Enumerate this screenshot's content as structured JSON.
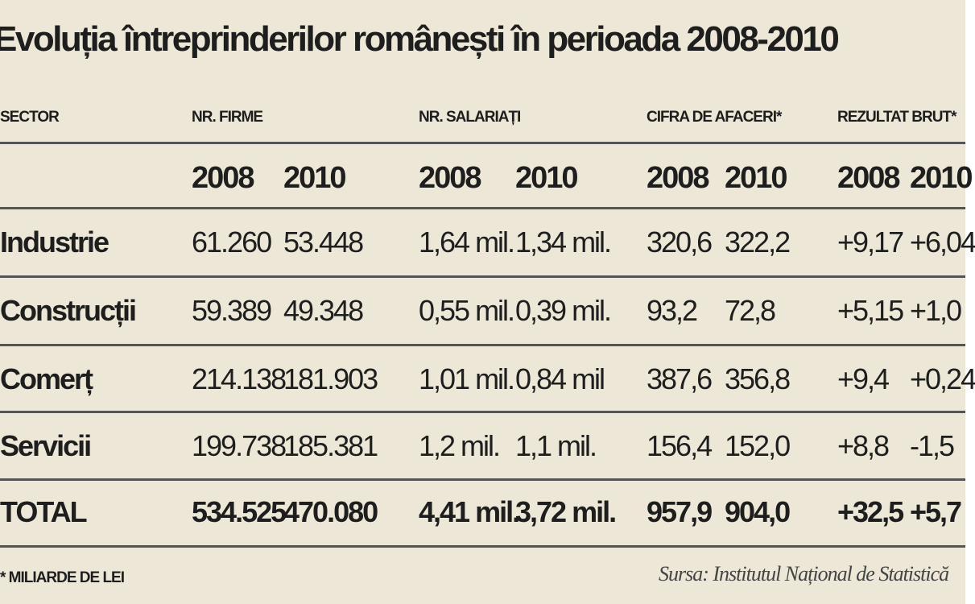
{
  "title": "Evoluția întreprinderilor românești în perioada 2008-2010",
  "table": {
    "header": [
      "SECTOR",
      "NR. FIRME",
      "NR. SALARIAȚI",
      "CIFRA DE AFACERI*",
      "REZULTAT BRUT*"
    ],
    "years": [
      "2008",
      "2010",
      "2008",
      "2010",
      "2008",
      "2010",
      "2008",
      "2010"
    ],
    "rows": [
      [
        "Industrie",
        "61.260",
        "53.448",
        "1,64 mil.",
        "1,34 mil.",
        "320,6",
        "322,2",
        "+9,17",
        "+6,04"
      ],
      [
        "Construcții",
        "59.389",
        "49.348",
        "0,55 mil.",
        "0,39 mil.",
        "93,2",
        "72,8",
        "+5,15",
        "+1,0"
      ],
      [
        "Comerț",
        "214.138",
        "181.903",
        "1,01 mil.",
        "0,84 mil",
        "387,6",
        "356,8",
        "+9,4",
        "+0,24"
      ],
      [
        "Servicii",
        "199.738",
        "185.381",
        "1,2 mil.",
        "1,1 mil.",
        "156,4",
        "152,0",
        "+8,8",
        "-1,5"
      ],
      [
        "TOTAL",
        "534.525",
        "470.080",
        "4,41 mil.",
        "3,72 mil.",
        "957,9",
        "904,0",
        "+32,5",
        "+5,7"
      ]
    ]
  },
  "footnote": "* MILIARDE DE LEI",
  "source": "Sursa: Institutul Național de Statistică"
}
